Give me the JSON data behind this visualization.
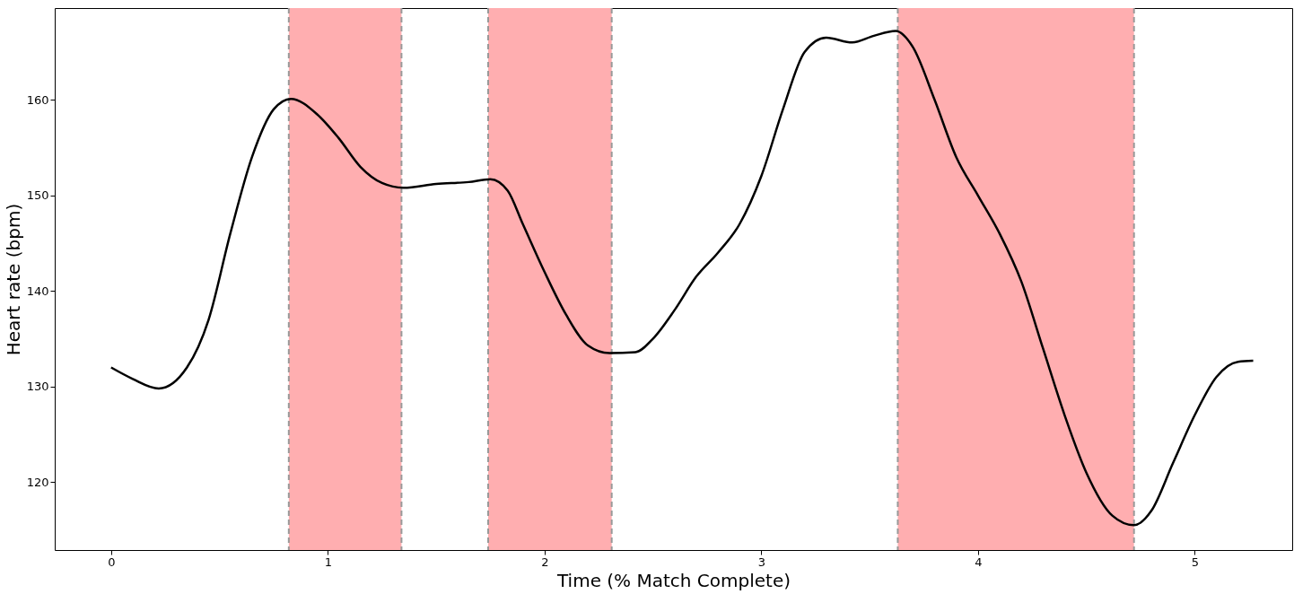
{
  "chart_data": {
    "type": "line",
    "xlabel": "Time (% Match Complete)",
    "ylabel": "Heart rate (bpm)",
    "x": [
      0,
      0.1,
      0.22,
      0.35,
      0.45,
      0.55,
      0.65,
      0.75,
      0.83,
      0.95,
      1.05,
      1.15,
      1.25,
      1.35,
      1.5,
      1.65,
      1.75,
      1.83,
      1.9,
      2.0,
      2.1,
      2.2,
      2.3,
      2.42,
      2.5,
      2.6,
      2.7,
      2.8,
      2.9,
      3.0,
      3.1,
      3.2,
      3.3,
      3.42,
      3.52,
      3.62,
      3.7,
      3.8,
      3.9,
      4.0,
      4.1,
      4.2,
      4.3,
      4.4,
      4.5,
      4.62,
      4.72,
      4.8,
      4.9,
      5.0,
      5.1,
      5.2,
      5.27
    ],
    "series": [
      {
        "color": "#000000",
        "values": [
          132,
          130.8,
          129.8,
          132,
          137,
          146,
          154,
          159,
          160.1,
          158.5,
          156,
          153,
          151.3,
          150.8,
          151.2,
          151.4,
          151.7,
          150.5,
          147,
          142,
          137.5,
          134.3,
          133.5,
          133.6,
          135,
          138,
          141.5,
          144,
          147,
          152,
          159,
          165,
          166.5,
          166,
          166.7,
          167.2,
          165.5,
          160,
          154,
          150,
          146,
          141,
          134,
          127,
          121,
          116.5,
          115.5,
          117,
          122,
          127,
          131,
          132.6,
          132.7
        ]
      }
    ],
    "xlim": [
      -0.26,
      5.45
    ],
    "ylim": [
      112.9,
      169.6
    ],
    "xticks": [
      0,
      1,
      2,
      3,
      4,
      5
    ],
    "yticks": [
      120,
      130,
      140,
      150,
      160
    ],
    "bands": [
      {
        "axis": "x",
        "from": 0.82,
        "to": 1.34,
        "color": "#ffaeb0"
      },
      {
        "axis": "x",
        "from": 1.74,
        "to": 2.31,
        "color": "#ffaeb0"
      },
      {
        "axis": "x",
        "from": 3.63,
        "to": 4.72,
        "color": "#ffaeb0"
      }
    ],
    "grid": false,
    "line_style": "solid",
    "marker": "none"
  }
}
